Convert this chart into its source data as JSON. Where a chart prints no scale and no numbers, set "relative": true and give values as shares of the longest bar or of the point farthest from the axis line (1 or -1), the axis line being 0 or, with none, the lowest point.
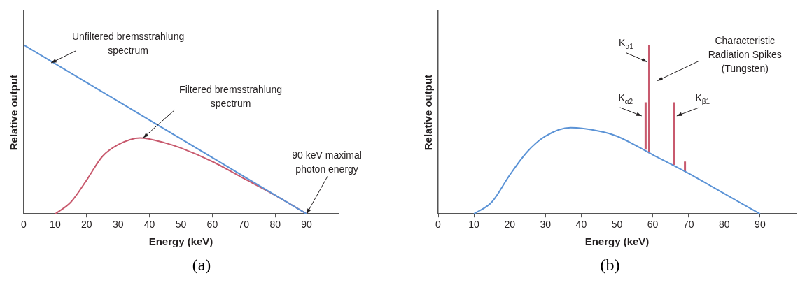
{
  "chart_data": [
    {
      "type": "line",
      "xlabel": "Energy (keV)",
      "ylabel": "Relative output",
      "relative": true,
      "xlim": [
        0,
        100
      ],
      "xticks": [
        0,
        10,
        20,
        30,
        40,
        50,
        60,
        70,
        80,
        90
      ],
      "grid": false,
      "legend": false,
      "series": [
        {
          "type": "line",
          "color": "#5b93d6",
          "x": [
            0,
            90
          ],
          "values": [
            1,
            0
          ]
        },
        {
          "type": "line",
          "color": "#c85a6e",
          "x": [
            10,
            15,
            20,
            25,
            30,
            37,
            45,
            50,
            60,
            70,
            80,
            90
          ],
          "values": [
            0,
            0.07,
            0.2,
            0.34,
            0.41,
            0.45,
            0.42,
            0.39,
            0.31,
            0.21,
            0.11,
            0
          ]
        }
      ],
      "annotations": [
        "Unfiltered bremsstrahlung spectrum",
        {
          "text": "Filtered bremsstrahlung spectrum",
          "x": 38,
          "y": 0.45
        },
        {
          "text": "90 keV maximal photon energy",
          "x": 90,
          "y": 0
        },
        "(a)"
      ]
    },
    {
      "type": "line",
      "xlabel": "Energy (keV)",
      "ylabel": "Relative output",
      "relative": true,
      "xlim": [
        0,
        100
      ],
      "xticks": [
        0,
        10,
        20,
        30,
        40,
        50,
        60,
        70,
        80,
        90
      ],
      "grid": false,
      "legend": false,
      "series": [
        {
          "type": "line",
          "color": "#5b93d6",
          "x": [
            10,
            15,
            20,
            25,
            30,
            37,
            45,
            50,
            60,
            70,
            80,
            90
          ],
          "values": [
            0,
            0.07,
            0.23,
            0.37,
            0.46,
            0.51,
            0.49,
            0.46,
            0.35,
            0.24,
            0.12,
            0
          ]
        },
        {
          "type": "line",
          "color": "#c85a6e",
          "x": [
            58,
            58
          ],
          "values": [
            0.38,
            0.66
          ]
        },
        {
          "type": "line",
          "color": "#c85a6e",
          "x": [
            59,
            59
          ],
          "values": [
            0.36,
            1
          ]
        },
        {
          "type": "line",
          "color": "#c85a6e",
          "x": [
            66,
            66
          ],
          "values": [
            0.29,
            0.66
          ]
        },
        {
          "type": "line",
          "color": "#c85a6e",
          "x": [
            69,
            69
          ],
          "values": [
            0.25,
            0.31
          ]
        }
      ],
      "annotations": [
        {
          "text": "K$_{α1}$",
          "x": 58.4,
          "y": 0.9
        },
        "Characteristic Radiation Spikes (Tungsten)",
        {
          "text": "K$_{α2}$",
          "x": 56.9,
          "y": 0.58
        },
        {
          "text": "K$_{β1}$",
          "x": 66.7,
          "y": 0.58
        },
        "(b)"
      ]
    }
  ]
}
